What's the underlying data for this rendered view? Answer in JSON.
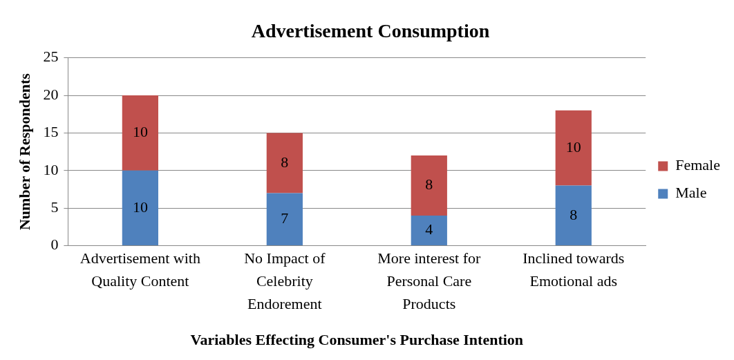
{
  "chart_data": {
    "type": "bar",
    "title": "Advertisement Consumption",
    "xlabel": "Variables Effecting Consumer's Purchase Intention",
    "ylabel": "Number of Respondents",
    "categories": [
      "Advertisement with Quality Content",
      "No Impact of Celebrity Endorement",
      "More interest for Personal Care Products",
      "Inclined towards Emotional ads"
    ],
    "series": [
      {
        "name": "Male",
        "color": "#4f81bd",
        "values": [
          10,
          7,
          4,
          8
        ]
      },
      {
        "name": "Female",
        "color": "#c0504d",
        "values": [
          10,
          8,
          8,
          10
        ]
      }
    ],
    "stacked": true,
    "ylim": [
      0,
      25
    ],
    "yticks": [
      0,
      5,
      10,
      15,
      20,
      25
    ],
    "grid": "y",
    "legend": "right",
    "data_labels": true
  }
}
